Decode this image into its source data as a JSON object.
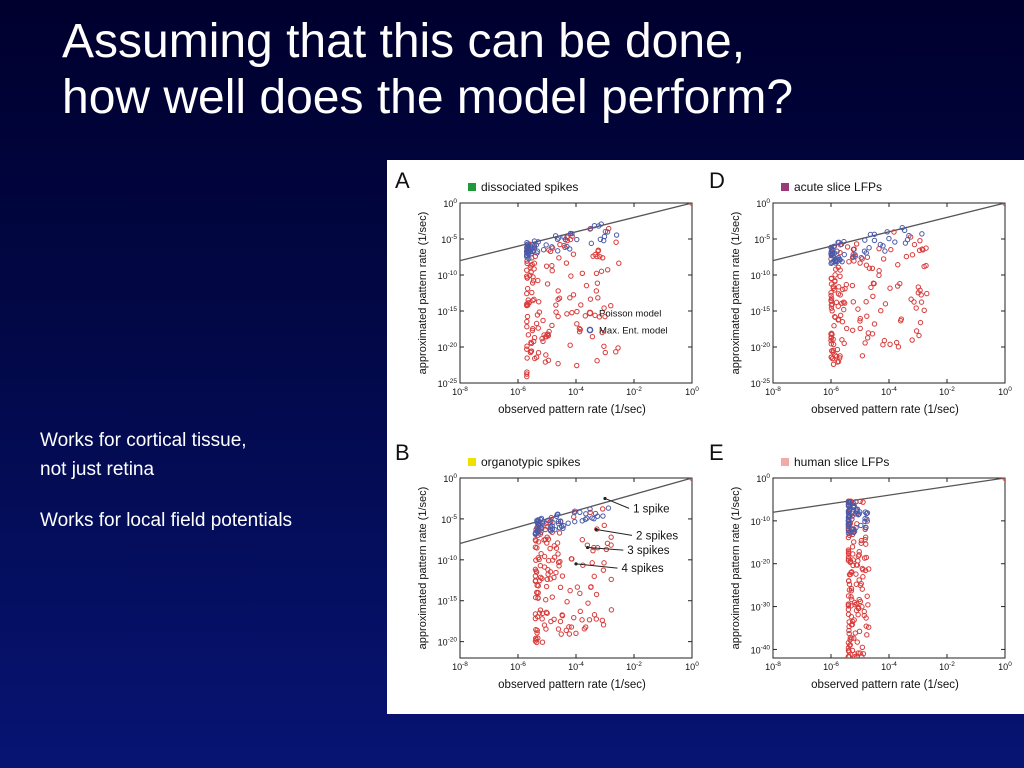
{
  "slide": {
    "title_line1": "Assuming that this can be done,",
    "title_line2": "how well does the model perform?",
    "bullets": [
      {
        "line1": "Works for cortical tissue,",
        "line2": "not just retina"
      },
      {
        "line1": "Works for local field potentials",
        "line2": ""
      }
    ]
  },
  "colors": {
    "poisson": "#d93a3a",
    "maxent": "#4a5aa8",
    "identity_line": "#555555",
    "legend_dissociated": "#1f9a3a",
    "legend_acute": "#9a3a7a",
    "legend_organotypic": "#f0e000",
    "legend_human": "#f2aaa4"
  },
  "chart_data": [
    {
      "type": "scatter",
      "panel_letter": "A",
      "legend_title": "dissociated spikes",
      "legend_color_key": "legend_dissociated",
      "xlabel": "observed pattern rate (1/sec)",
      "ylabel": "approximated pattern rate (1/sec)",
      "x_scale": "log",
      "y_scale": "log",
      "xlim_exp": [
        -8,
        0
      ],
      "ylim_exp": [
        -25,
        0
      ],
      "x_ticks": [
        "10-8",
        "10-6",
        "10-4",
        "10-2",
        "100"
      ],
      "x_tick_exps": [
        -8,
        -6,
        -4,
        -2,
        0
      ],
      "y_ticks": [
        "100",
        "10-5",
        "10-10",
        "10-15",
        "10-20",
        "10-25"
      ],
      "y_tick_exps": [
        0,
        -5,
        -10,
        -15,
        -20,
        -25
      ],
      "series_legend": [
        "Poisson model",
        "Max. Ent. model"
      ],
      "min_obs_exp": -5.7,
      "max_obs_exp": -2.5,
      "poisson_spread": 19,
      "maxent_spread": 2.5
    },
    {
      "type": "scatter",
      "panel_letter": "D",
      "legend_title": "acute slice LFPs",
      "legend_color_key": "legend_acute",
      "xlabel": "observed pattern rate (1/sec)",
      "ylabel": "approximated pattern rate (1/sec)",
      "x_scale": "log",
      "y_scale": "log",
      "xlim_exp": [
        -8,
        0
      ],
      "ylim_exp": [
        -25,
        0
      ],
      "x_ticks": [
        "10-8",
        "10-6",
        "10-4",
        "10-2",
        "100"
      ],
      "x_tick_exps": [
        -8,
        -6,
        -4,
        -2,
        0
      ],
      "y_ticks": [
        "100",
        "10-5",
        "10-10",
        "10-15",
        "10-20",
        "10-25"
      ],
      "y_tick_exps": [
        0,
        -5,
        -10,
        -15,
        -20,
        -25
      ],
      "series_legend": [],
      "min_obs_exp": -6,
      "max_obs_exp": -2.6,
      "poisson_spread": 17,
      "maxent_spread": 3
    },
    {
      "type": "scatter",
      "panel_letter": "B",
      "legend_title": "organotypic spikes",
      "legend_color_key": "legend_organotypic",
      "xlabel": "observed pattern rate (1/sec)",
      "ylabel": "approximated pattern rate (1/sec)",
      "x_scale": "log",
      "y_scale": "log",
      "xlim_exp": [
        -8,
        0
      ],
      "ylim_exp": [
        -22,
        0
      ],
      "x_ticks": [
        "10-8",
        "10-6",
        "10-4",
        "10-2",
        "100"
      ],
      "x_tick_exps": [
        -8,
        -6,
        -4,
        -2,
        0
      ],
      "y_ticks": [
        "100",
        "10-5",
        "10-10",
        "10-15",
        "10-20"
      ],
      "y_tick_exps": [
        0,
        -5,
        -10,
        -15,
        -20
      ],
      "series_legend": [],
      "annotations": [
        {
          "text": "1 spike",
          "x_exp": -2.1,
          "y_exp": -4.2,
          "target_x_exp": -3.0,
          "target_y_exp": -2.5
        },
        {
          "text": "2 spikes",
          "x_exp": -2.0,
          "y_exp": -7.5,
          "target_x_exp": -3.3,
          "target_y_exp": -6.3
        },
        {
          "text": "3 spikes",
          "x_exp": -2.3,
          "y_exp": -9.3,
          "target_x_exp": -3.6,
          "target_y_exp": -8.5
        },
        {
          "text": "4 spikes",
          "x_exp": -2.5,
          "y_exp": -11.5,
          "target_x_exp": -4.0,
          "target_y_exp": -10.5
        }
      ],
      "min_obs_exp": -5.4,
      "max_obs_exp": -2.7,
      "poisson_spread": 15,
      "maxent_spread": 2
    },
    {
      "type": "scatter",
      "panel_letter": "E",
      "legend_title": "human slice LFPs",
      "legend_color_key": "legend_human",
      "xlabel": "observed pattern rate (1/sec)",
      "ylabel": "approximated pattern rate (1/sec)",
      "x_scale": "log",
      "y_scale": "log",
      "xlim_exp": [
        -8,
        0
      ],
      "ylim_exp": [
        -42,
        0
      ],
      "x_ticks": [
        "10-8",
        "10-6",
        "10-4",
        "10-2",
        "100"
      ],
      "x_tick_exps": [
        -8,
        -6,
        -4,
        -2,
        0
      ],
      "y_ticks": [
        "100",
        "10-10",
        "10-20",
        "10-30",
        "10-40"
      ],
      "y_tick_exps": [
        0,
        -10,
        -20,
        -30,
        -40
      ],
      "series_legend": [],
      "min_obs_exp": -5.4,
      "max_obs_exp": -4.7,
      "poisson_spread": 38,
      "maxent_spread": 8
    }
  ]
}
